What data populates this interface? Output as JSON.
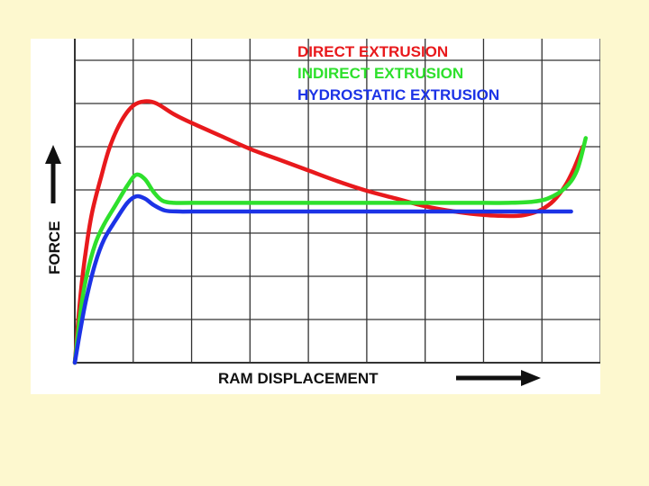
{
  "chart_data": {
    "type": "line",
    "title": "",
    "xlabel": "RAM DISPLACEMENT",
    "ylabel": "FORCE",
    "xlim": [
      0,
      9
    ],
    "ylim": [
      0,
      7.5
    ],
    "grid": true,
    "legend_position": "top-right",
    "series": [
      {
        "name": "DIRECT EXTRUSION",
        "color": "#e8191c",
        "x": [
          0,
          0.1,
          0.2,
          0.3,
          0.45,
          0.6,
          0.8,
          1.0,
          1.2,
          1.4,
          1.7,
          2.0,
          2.5,
          3.0,
          3.5,
          4.0,
          4.5,
          5.0,
          5.5,
          6.0,
          6.5,
          7.0,
          7.3,
          7.6,
          7.8,
          8.0,
          8.2,
          8.4,
          8.55,
          8.7
        ],
        "values": [
          0,
          1.6,
          2.7,
          3.5,
          4.3,
          5.0,
          5.6,
          5.95,
          6.05,
          6.0,
          5.75,
          5.55,
          5.25,
          4.95,
          4.7,
          4.45,
          4.2,
          3.98,
          3.8,
          3.62,
          3.5,
          3.42,
          3.4,
          3.4,
          3.45,
          3.55,
          3.75,
          4.1,
          4.5,
          5.0
        ]
      },
      {
        "name": "INDIRECT EXTRUSION",
        "color": "#2ee02c",
        "x": [
          0,
          0.1,
          0.2,
          0.35,
          0.5,
          0.7,
          0.9,
          1.05,
          1.2,
          1.35,
          1.5,
          1.7,
          2.0,
          3.0,
          4.0,
          5.0,
          6.0,
          7.0,
          7.4,
          7.8,
          8.1,
          8.4,
          8.6,
          8.75
        ],
        "values": [
          0,
          1.2,
          2.0,
          2.75,
          3.2,
          3.65,
          4.1,
          4.35,
          4.25,
          3.95,
          3.75,
          3.7,
          3.7,
          3.7,
          3.7,
          3.7,
          3.7,
          3.7,
          3.7,
          3.72,
          3.8,
          4.05,
          4.45,
          5.2
        ]
      },
      {
        "name": "HYDROSTATIC EXTRUSION",
        "color": "#1c33e6",
        "x": [
          0,
          0.1,
          0.2,
          0.35,
          0.5,
          0.7,
          0.9,
          1.05,
          1.2,
          1.35,
          1.55,
          1.8,
          2.0,
          3.0,
          4.0,
          5.0,
          6.0,
          7.0,
          8.0,
          8.5
        ],
        "values": [
          0,
          0.8,
          1.5,
          2.3,
          2.85,
          3.3,
          3.7,
          3.85,
          3.8,
          3.65,
          3.52,
          3.5,
          3.5,
          3.5,
          3.5,
          3.5,
          3.5,
          3.5,
          3.5,
          3.5
        ]
      }
    ]
  }
}
